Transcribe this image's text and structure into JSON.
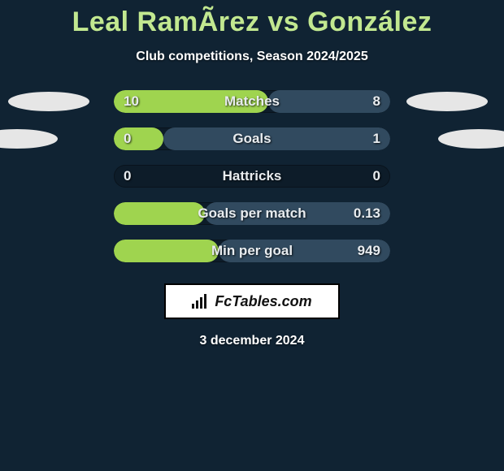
{
  "background_color": "#102333",
  "title": {
    "text": "Leal RamÃ­rez vs González",
    "color": "#c2e890",
    "fontsize": 34,
    "fontweight": 900
  },
  "subtitle": {
    "text": "Club competitions, Season 2024/2025",
    "color": "#ffffff",
    "fontsize": 16,
    "fontweight": 700
  },
  "photos": {
    "placeholder_color": "#e6e6e6",
    "offsets": [
      52,
      13
    ]
  },
  "rows": [
    {
      "label": "Matches",
      "left_val": "10",
      "right_val": "8",
      "left_pct": 56,
      "right_pct": 44,
      "has_photos": true,
      "photo_offset": 0
    },
    {
      "label": "Goals",
      "left_val": "0",
      "right_val": "1",
      "left_pct": 18,
      "right_pct": 82,
      "has_photos": true,
      "photo_offset": 1
    },
    {
      "label": "Hattricks",
      "left_val": "0",
      "right_val": "0",
      "left_pct": 0,
      "right_pct": 0,
      "has_photos": false
    },
    {
      "label": "Goals per match",
      "left_val": "",
      "right_val": "0.13",
      "left_pct": 33,
      "right_pct": 67,
      "has_photos": false
    },
    {
      "label": "Min per goal",
      "left_val": "",
      "right_val": "949",
      "left_pct": 38,
      "right_pct": 62,
      "has_photos": false
    }
  ],
  "bar_style": {
    "left_color": "#9fd44f",
    "right_color": "#314a5f",
    "track_color": "#0d1c29",
    "height": 28,
    "radius": 14,
    "label_color": "#e8ecef",
    "label_fontsize": 17
  },
  "logo": {
    "text": "FcTables.com",
    "bg": "#ffffff",
    "border": "#000000",
    "text_color": "#111111",
    "fontsize": 18
  },
  "date": {
    "text": "3 december 2024",
    "color": "#ffffff",
    "fontsize": 16,
    "fontweight": 700
  }
}
